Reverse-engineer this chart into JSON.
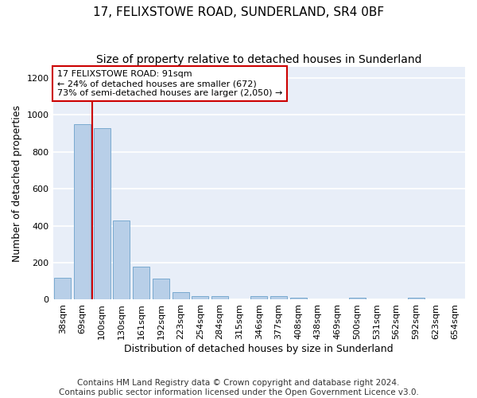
{
  "title": "17, FELIXSTOWE ROAD, SUNDERLAND, SR4 0BF",
  "subtitle": "Size of property relative to detached houses in Sunderland",
  "xlabel": "Distribution of detached houses by size in Sunderland",
  "ylabel": "Number of detached properties",
  "categories": [
    "38sqm",
    "69sqm",
    "100sqm",
    "130sqm",
    "161sqm",
    "192sqm",
    "223sqm",
    "254sqm",
    "284sqm",
    "315sqm",
    "346sqm",
    "377sqm",
    "408sqm",
    "438sqm",
    "469sqm",
    "500sqm",
    "531sqm",
    "562sqm",
    "592sqm",
    "623sqm",
    "654sqm"
  ],
  "values": [
    120,
    950,
    930,
    430,
    180,
    115,
    42,
    20,
    20,
    0,
    18,
    18,
    10,
    0,
    0,
    10,
    0,
    0,
    10,
    0,
    0
  ],
  "bar_color": "#b8cfe8",
  "bar_edge_color": "#7aaad0",
  "annotation_text": "17 FELIXSTOWE ROAD: 91sqm\n← 24% of detached houses are smaller (672)\n73% of semi-detached houses are larger (2,050) →",
  "annotation_box_color": "#ffffff",
  "annotation_box_edge_color": "#cc0000",
  "vline_color": "#cc0000",
  "ylim": [
    0,
    1260
  ],
  "yticks": [
    0,
    200,
    400,
    600,
    800,
    1000,
    1200
  ],
  "footer_line1": "Contains HM Land Registry data © Crown copyright and database right 2024.",
  "footer_line2": "Contains public sector information licensed under the Open Government Licence v3.0.",
  "fig_background_color": "#ffffff",
  "axes_background_color": "#e8eef8",
  "grid_color": "#ffffff",
  "title_fontsize": 11,
  "subtitle_fontsize": 10,
  "label_fontsize": 9,
  "tick_fontsize": 8,
  "annotation_fontsize": 8,
  "footer_fontsize": 7.5
}
